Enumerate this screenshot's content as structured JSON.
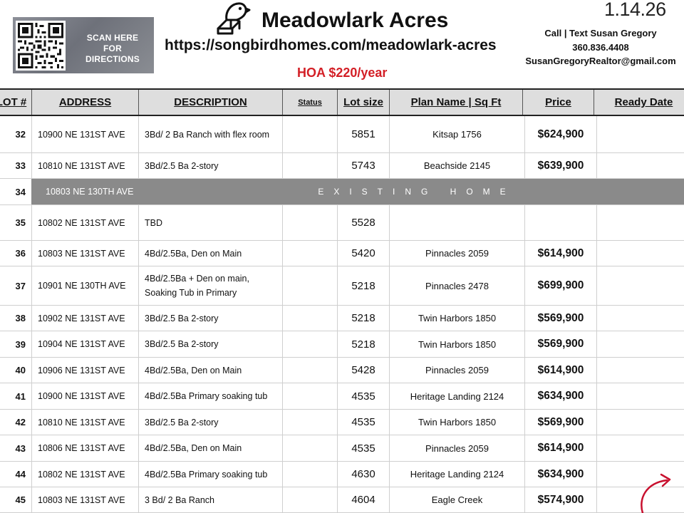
{
  "header": {
    "qr_caption_line1": "SCAN HERE",
    "qr_caption_line2": "FOR DIRECTIONS",
    "title": "Meadowlark Acres",
    "url": "https://songbirdhomes.com/meadowlark-acres",
    "hoa": "HOA $220/year",
    "date": "1.14.26",
    "contact_line": "Call | Text Susan Gregory",
    "phone": "360.836.4408",
    "email": "SusanGregoryRealtor@gmail.com",
    "logo_icon": "bird-house-icon",
    "accent_color": "#d31f26"
  },
  "table": {
    "columns": {
      "lot": "LOT #",
      "address": "ADDRESS",
      "description": "DESCRIPTION",
      "status": "Status",
      "lot_size": "Lot size",
      "plan": "Plan Name | Sq Ft",
      "price": "Price",
      "ready": "Ready Date"
    },
    "rows": [
      {
        "lot": "32",
        "address": "10900 NE 131ST AVE",
        "description": "3Bd/ 2 Ba Ranch with flex room",
        "status": "",
        "lot_size": "5851",
        "plan": "Kitsap 1756",
        "price": "$624,900",
        "ready": ""
      },
      {
        "lot": "33",
        "address": "10810 NE 131ST AVE",
        "description": "3Bd/2.5 Ba 2-story",
        "status": "",
        "lot_size": "5743",
        "plan": "Beachside 2145",
        "price": "$639,900",
        "ready": ""
      },
      {
        "lot": "34",
        "address": "10803 NE 130TH AVE",
        "description": "EXISTING HOME",
        "status": "",
        "lot_size": "",
        "plan": "",
        "price": "",
        "ready": ""
      },
      {
        "lot": "35",
        "address": "10802 NE 131ST AVE",
        "description": "TBD",
        "status": "",
        "lot_size": "5528",
        "plan": "",
        "price": "",
        "ready": ""
      },
      {
        "lot": "36",
        "address": "10803 NE 131ST AVE",
        "description": "4Bd/2.5Ba, Den on Main",
        "status": "",
        "lot_size": "5420",
        "plan": "Pinnacles 2059",
        "price": "$614,900",
        "ready": ""
      },
      {
        "lot": "37",
        "address": "10901 NE 130TH AVE",
        "description": "4Bd/2.5Ba + Den on main, Soaking Tub in Primary",
        "status": "",
        "lot_size": "5218",
        "plan": "Pinnacles 2478",
        "price": "$699,900",
        "ready": ""
      },
      {
        "lot": "38",
        "address": "10902 NE 131ST AVE",
        "description": "3Bd/2.5 Ba 2-story",
        "status": "",
        "lot_size": "5218",
        "plan": "Twin Harbors 1850",
        "price": "$569,900",
        "ready": ""
      },
      {
        "lot": "39",
        "address": "10904 NE 131ST AVE",
        "description": "3Bd/2.5 Ba 2-story",
        "status": "",
        "lot_size": "5218",
        "plan": "Twin Harbors 1850",
        "price": "$569,900",
        "ready": ""
      },
      {
        "lot": "40",
        "address": "10906 NE 131ST AVE",
        "description": "4Bd/2.5Ba, Den on Main",
        "status": "",
        "lot_size": "5428",
        "plan": "Pinnacles 2059",
        "price": "$614,900",
        "ready": ""
      },
      {
        "lot": "41",
        "address": "10900 NE 131ST AVE",
        "description": "4Bd/2.5Ba Primary soaking tub",
        "status": "",
        "lot_size": "4535",
        "plan": "Heritage Landing 2124",
        "price": "$634,900",
        "ready": ""
      },
      {
        "lot": "42",
        "address": "10810 NE 131ST AVE",
        "description": "3Bd/2.5 Ba 2-story",
        "status": "",
        "lot_size": "4535",
        "plan": "Twin Harbors 1850",
        "price": "$569,900",
        "ready": ""
      },
      {
        "lot": "43",
        "address": "10806 NE 131ST AVE",
        "description": "4Bd/2.5Ba, Den on Main",
        "status": "",
        "lot_size": "4535",
        "plan": "Pinnacles 2059",
        "price": "$614,900",
        "ready": ""
      },
      {
        "lot": "44",
        "address": "10802 NE 131ST AVE",
        "description": "4Bd/2.5Ba Primary soaking tub",
        "status": "",
        "lot_size": "4630",
        "plan": "Heritage Landing 2124",
        "price": "$634,900",
        "ready": ""
      },
      {
        "lot": "45",
        "address": "10803 NE 131ST AVE",
        "description": "3 Bd/ 2 Ba Ranch",
        "status": "",
        "lot_size": "4604",
        "plan": "Eagle Creek",
        "price": "$574,900",
        "ready": ""
      }
    ]
  },
  "decor": {
    "arrow_icon": "curved-arrow-icon",
    "arrow_color": "#c8102e",
    "existing_row_color": "#8a8a8a"
  }
}
